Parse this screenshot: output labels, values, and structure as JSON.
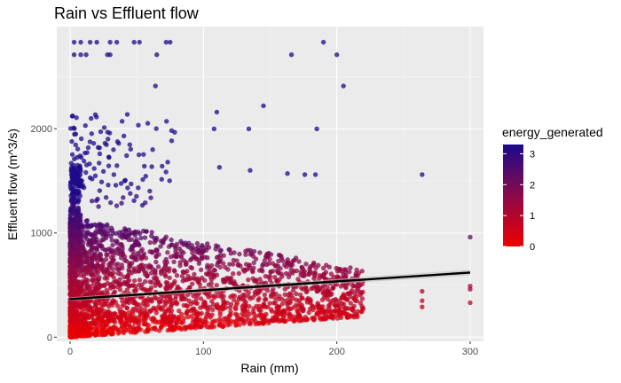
{
  "chart_data": {
    "type": "scatter",
    "title": "Rain vs Effluent flow",
    "xlabel": "Rain (mm)",
    "ylabel": "Effluent flow (m^3/s)",
    "xlim": [
      -10,
      310
    ],
    "ylim": [
      -40,
      2980
    ],
    "x_ticks": [
      0,
      100,
      200,
      300
    ],
    "y_ticks": [
      0,
      1000,
      2000
    ],
    "grid": true,
    "legend": {
      "title": "energy_generated",
      "position": "right",
      "range": [
        0,
        3.3
      ],
      "ticks": [
        0,
        1,
        2,
        3
      ],
      "color_low": "#ee0000",
      "color_mid": "#8b0a4a",
      "color_high": "#1a0a8c"
    },
    "trend_line": {
      "x": [
        0,
        300
      ],
      "y": [
        365,
        620
      ]
    },
    "points_summary": {
      "x_range": [
        0,
        300
      ],
      "y_range": [
        0,
        2830
      ],
      "dense_region": "x 0-220, y 0-1300"
    },
    "notable_points": [
      {
        "x": 3,
        "y": 2830
      },
      {
        "x": 8,
        "y": 2830
      },
      {
        "x": 15,
        "y": 2830
      },
      {
        "x": 20,
        "y": 2830
      },
      {
        "x": 30,
        "y": 2830
      },
      {
        "x": 35,
        "y": 2830
      },
      {
        "x": 48,
        "y": 2830
      },
      {
        "x": 52,
        "y": 2830
      },
      {
        "x": 72,
        "y": 2830
      },
      {
        "x": 75,
        "y": 2830
      },
      {
        "x": 190,
        "y": 2830
      },
      {
        "x": 3,
        "y": 2710
      },
      {
        "x": 8,
        "y": 2710
      },
      {
        "x": 12,
        "y": 2710
      },
      {
        "x": 28,
        "y": 2710
      },
      {
        "x": 30,
        "y": 2710
      },
      {
        "x": 65,
        "y": 2710
      },
      {
        "x": 166,
        "y": 2710
      },
      {
        "x": 200,
        "y": 2710
      },
      {
        "x": 205,
        "y": 2410
      },
      {
        "x": 64,
        "y": 2410
      },
      {
        "x": 145,
        "y": 2220
      },
      {
        "x": 110,
        "y": 2160
      },
      {
        "x": 185,
        "y": 1999
      },
      {
        "x": 108,
        "y": 1999
      },
      {
        "x": 134,
        "y": 1999
      },
      {
        "x": 112,
        "y": 1630
      },
      {
        "x": 135,
        "y": 1600
      },
      {
        "x": 163,
        "y": 1570
      },
      {
        "x": 176,
        "y": 1560
      },
      {
        "x": 184,
        "y": 1560
      },
      {
        "x": 264,
        "y": 1560
      },
      {
        "x": 300,
        "y": 960
      },
      {
        "x": 300,
        "y": 490
      },
      {
        "x": 300,
        "y": 460
      },
      {
        "x": 300,
        "y": 330
      },
      {
        "x": 264,
        "y": 440
      },
      {
        "x": 264,
        "y": 350
      },
      {
        "x": 264,
        "y": 290
      }
    ]
  }
}
